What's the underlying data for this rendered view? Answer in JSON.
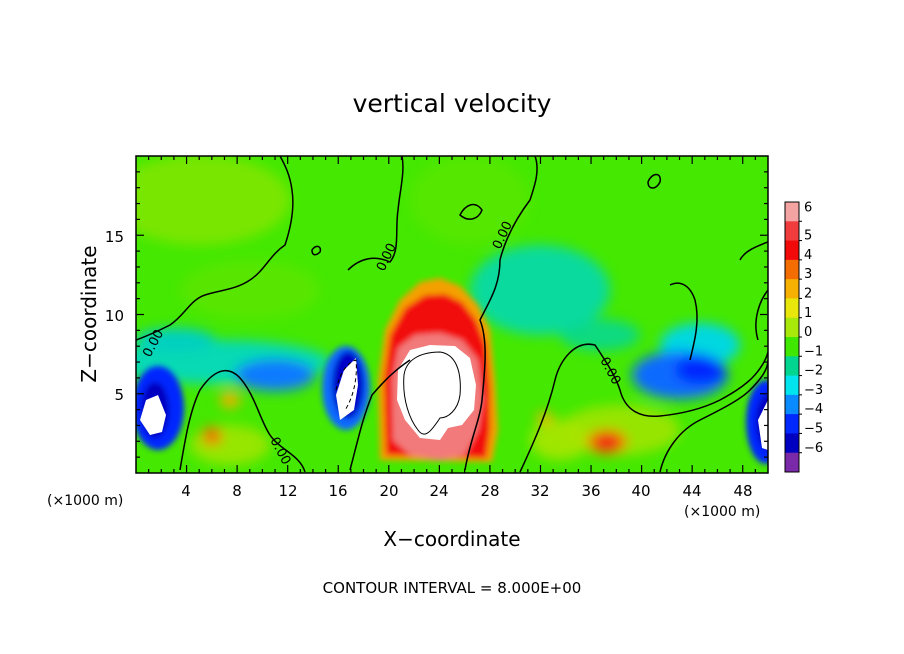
{
  "chart_data": {
    "type": "heatmap",
    "title": "vertical velocity",
    "xlabel": "X−coordinate",
    "ylabel": "Z−coordinate",
    "x_unit_left": "(×1000 m)",
    "x_unit_right": "(×1000 m)",
    "x_ticks": [
      "4",
      "8",
      "12",
      "16",
      "20",
      "24",
      "28",
      "32",
      "36",
      "40",
      "44",
      "48"
    ],
    "y_ticks": [
      "5",
      "10",
      "15"
    ],
    "xlim": [
      0,
      50
    ],
    "ylim": [
      0,
      20
    ],
    "colorbar": {
      "labels": [
        "6",
        "5",
        "4",
        "3",
        "2",
        "1",
        "0",
        "−1",
        "−2",
        "−3",
        "−4",
        "−5",
        "−6"
      ],
      "colors": [
        "#f4a3a3",
        "#f03c3c",
        "#f20a0a",
        "#f46d00",
        "#f5b000",
        "#e8e60a",
        "#a8e80a",
        "#40e800",
        "#00d690",
        "#00e4ee",
        "#0a8aff",
        "#0028ff",
        "#0000c0",
        "#7a2aa8"
      ]
    },
    "contour_labels": [
      "0.00",
      "0.00",
      "0.00",
      "0.00",
      "0.00",
      "0.00"
    ],
    "contour_interval": "CONTOUR INTERVAL = 8.000E+00"
  }
}
